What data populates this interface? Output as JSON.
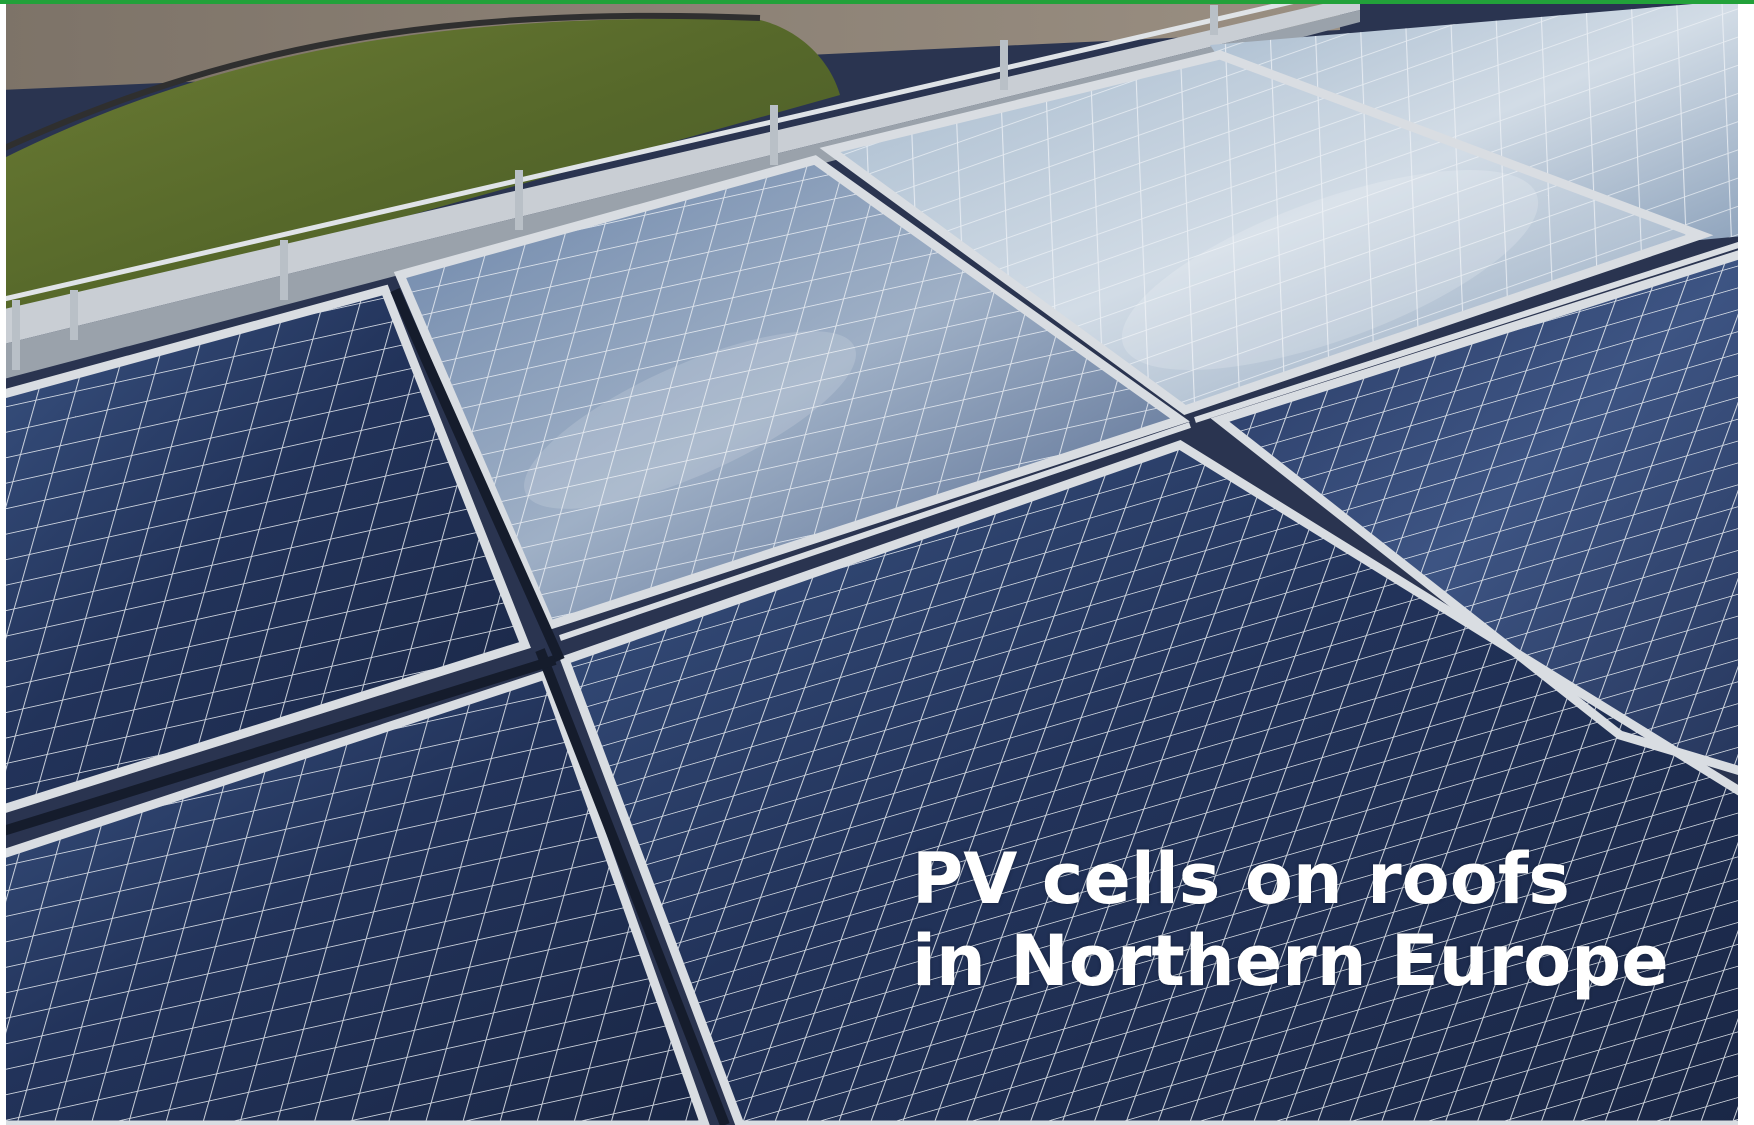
{
  "caption": {
    "line1": "PV cells on roofs",
    "line2": "in Northern Europe"
  },
  "colors": {
    "top_border": "#22a13a",
    "grass": "#5c6f2a",
    "gravel": "#8a7f72",
    "panel_dark": "#1e2c4c",
    "panel_light": "#b9c7d6",
    "frame": "#d9dde2",
    "caption_text": "#ffffff"
  },
  "icons": []
}
